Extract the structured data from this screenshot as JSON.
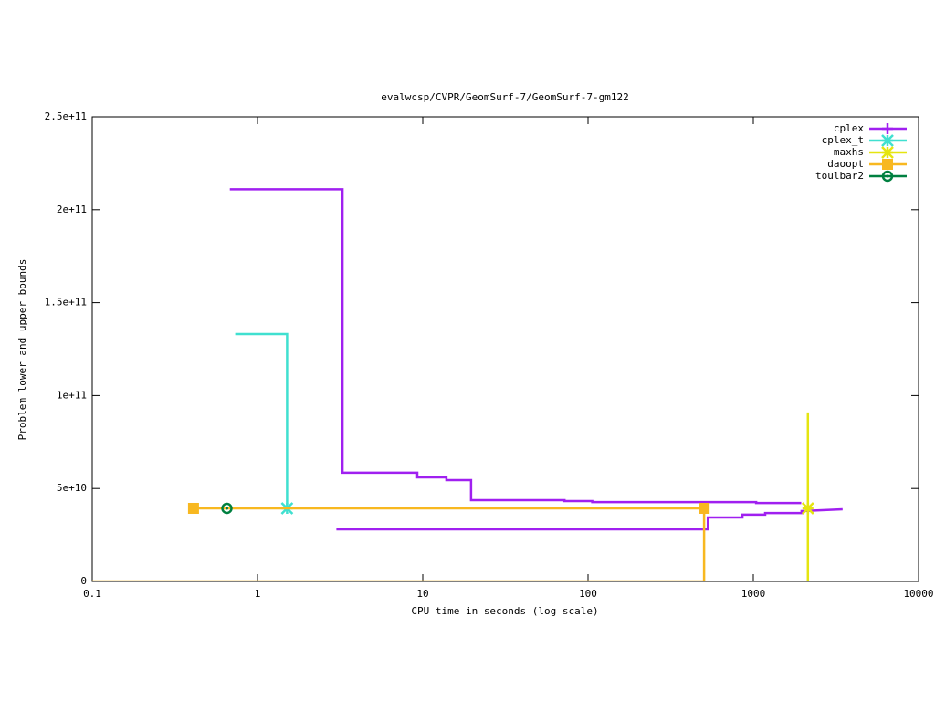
{
  "chart_data": {
    "type": "line",
    "title": "evalwcsp/CVPR/GeomSurf-7/GeomSurf-7-gm122",
    "x_label": "CPU time in seconds (log scale)",
    "y_label": "Problem lower and upper bounds",
    "xlog": true,
    "xlim": [
      0.1,
      10000
    ],
    "xticks": [
      0.1,
      1,
      10,
      100,
      1000,
      10000
    ],
    "ylim": [
      0,
      250000000000
    ],
    "yticks": [
      0,
      {
        "value": 50000000000,
        "label": "5e+10"
      },
      {
        "value": 100000000000,
        "label": "1e+11"
      },
      {
        "value": 150000000000,
        "label": "1.5e+11"
      },
      {
        "value": 200000000000,
        "label": "2e+11"
      },
      {
        "value": 250000000000,
        "label": "2.5e+11"
      }
    ],
    "grid": false,
    "legend": "top-right",
    "series": [
      {
        "name": "cplex",
        "color": "#a020f0",
        "marker": "plus",
        "x": [
          0.68,
          3.27,
          3.27,
          9.27,
          9.27,
          13.9,
          13.9,
          19.6,
          19.6,
          72,
          72,
          106,
          106,
          1040,
          1040,
          1950,
          null,
          3.0,
          531,
          531,
          859,
          859,
          1180,
          1180,
          1960,
          1960,
          3470
        ],
        "values": [
          211000000000,
          211000000000,
          58500000000,
          58500000000,
          56000000000,
          56000000000,
          54500000000,
          54500000000,
          43700000000,
          43700000000,
          43200000000,
          43200000000,
          42700000000,
          42700000000,
          42200000000,
          42200000000,
          null,
          28000000000,
          28000000000,
          34400000000,
          34400000000,
          35900000000,
          35900000000,
          36800000000,
          36800000000,
          37800000000,
          38800000000
        ]
      },
      {
        "name": "cplex_t",
        "color": "#40e0d0",
        "marker": "star",
        "x": [
          0.733,
          1.51,
          1.51
        ],
        "values": [
          133100000000,
          133100000000,
          39300000000
        ],
        "points": {
          "x": [
            1.51
          ],
          "values": [
            39300000000
          ]
        }
      },
      {
        "name": "maxhs",
        "color": "#e5e510",
        "marker": "star",
        "x": [
          2140,
          2140
        ],
        "values": [
          90900000000,
          0
        ],
        "points": {
          "x": [
            2140
          ],
          "values": [
            39300000000
          ]
        }
      },
      {
        "name": "daoopt",
        "color": "#f8b820",
        "marker": "square",
        "x": [
          0.41,
          504,
          504,
          0.1
        ],
        "values": [
          39300000000,
          39300000000,
          0,
          0
        ],
        "points": {
          "x": [
            0.41,
            504
          ],
          "values": [
            39300000000,
            39300000000
          ]
        }
      },
      {
        "name": "toulbar2",
        "color": "#008040",
        "marker": "circle",
        "x": [
          0.653
        ],
        "values": [
          39300000000
        ],
        "points": {
          "x": [
            0.653
          ],
          "values": [
            39300000000
          ]
        }
      }
    ]
  }
}
